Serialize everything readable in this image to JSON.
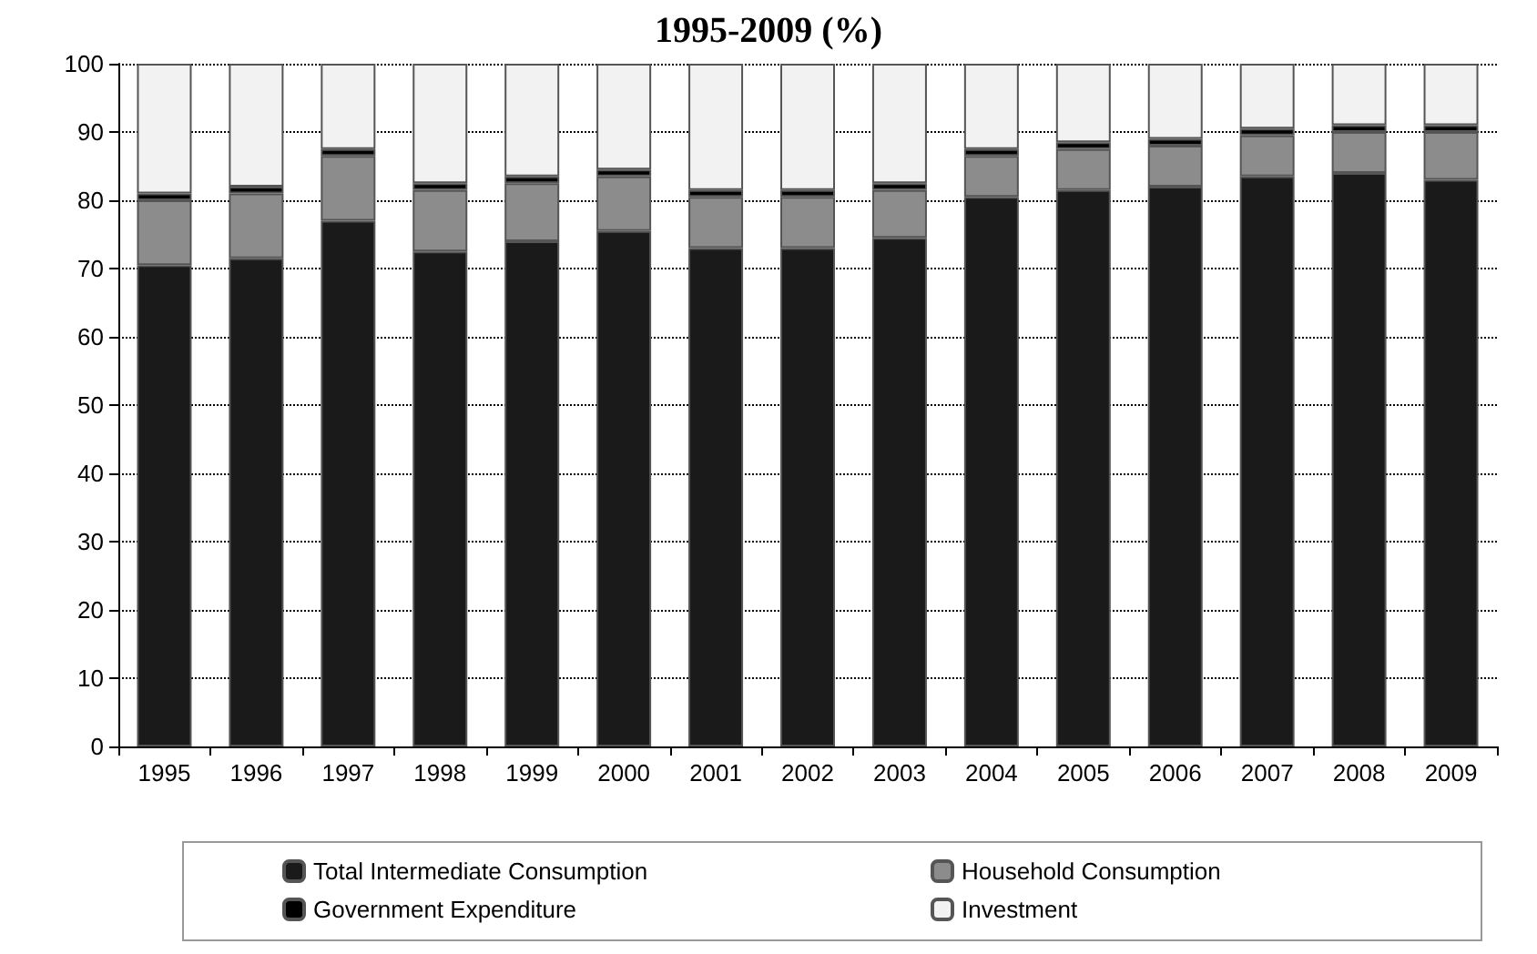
{
  "chart_data": {
    "type": "bar",
    "title": "1995-2009 (%)",
    "stacked": true,
    "categories": [
      "1995",
      "1996",
      "1997",
      "1998",
      "1999",
      "2000",
      "2001",
      "2002",
      "2003",
      "2004",
      "2005",
      "2006",
      "2007",
      "2008",
      "2009"
    ],
    "series": [
      {
        "name": "Total Intermediate Consumption",
        "color": "#1a1a1a",
        "values": [
          70.5,
          71.5,
          77,
          72.5,
          74,
          75.5,
          73,
          73,
          74.5,
          80.5,
          81.5,
          82,
          83.5,
          84,
          83
        ]
      },
      {
        "name": "Household Consumption",
        "color": "#8c8c8c",
        "values": [
          9.5,
          9.5,
          9.5,
          9,
          8.5,
          8,
          7.5,
          7.5,
          7,
          6,
          6,
          6,
          6,
          6,
          7
        ]
      },
      {
        "name": "Government Expenditure",
        "color": "#000000",
        "values": [
          1,
          1,
          1,
          1,
          1,
          1,
          1,
          1,
          1,
          1,
          1,
          1,
          1,
          1,
          1
        ]
      },
      {
        "name": "Investment",
        "color": "#f2f2f2",
        "values": [
          19,
          18,
          12.5,
          17.5,
          16.5,
          15.5,
          18.5,
          18.5,
          17.5,
          12.5,
          11.5,
          11,
          9.5,
          9,
          9
        ]
      }
    ],
    "ylim": [
      0,
      100
    ],
    "yticks": [
      0,
      10,
      20,
      30,
      40,
      50,
      60,
      70,
      80,
      90,
      100
    ],
    "grid": "y",
    "legend": "bottom"
  }
}
